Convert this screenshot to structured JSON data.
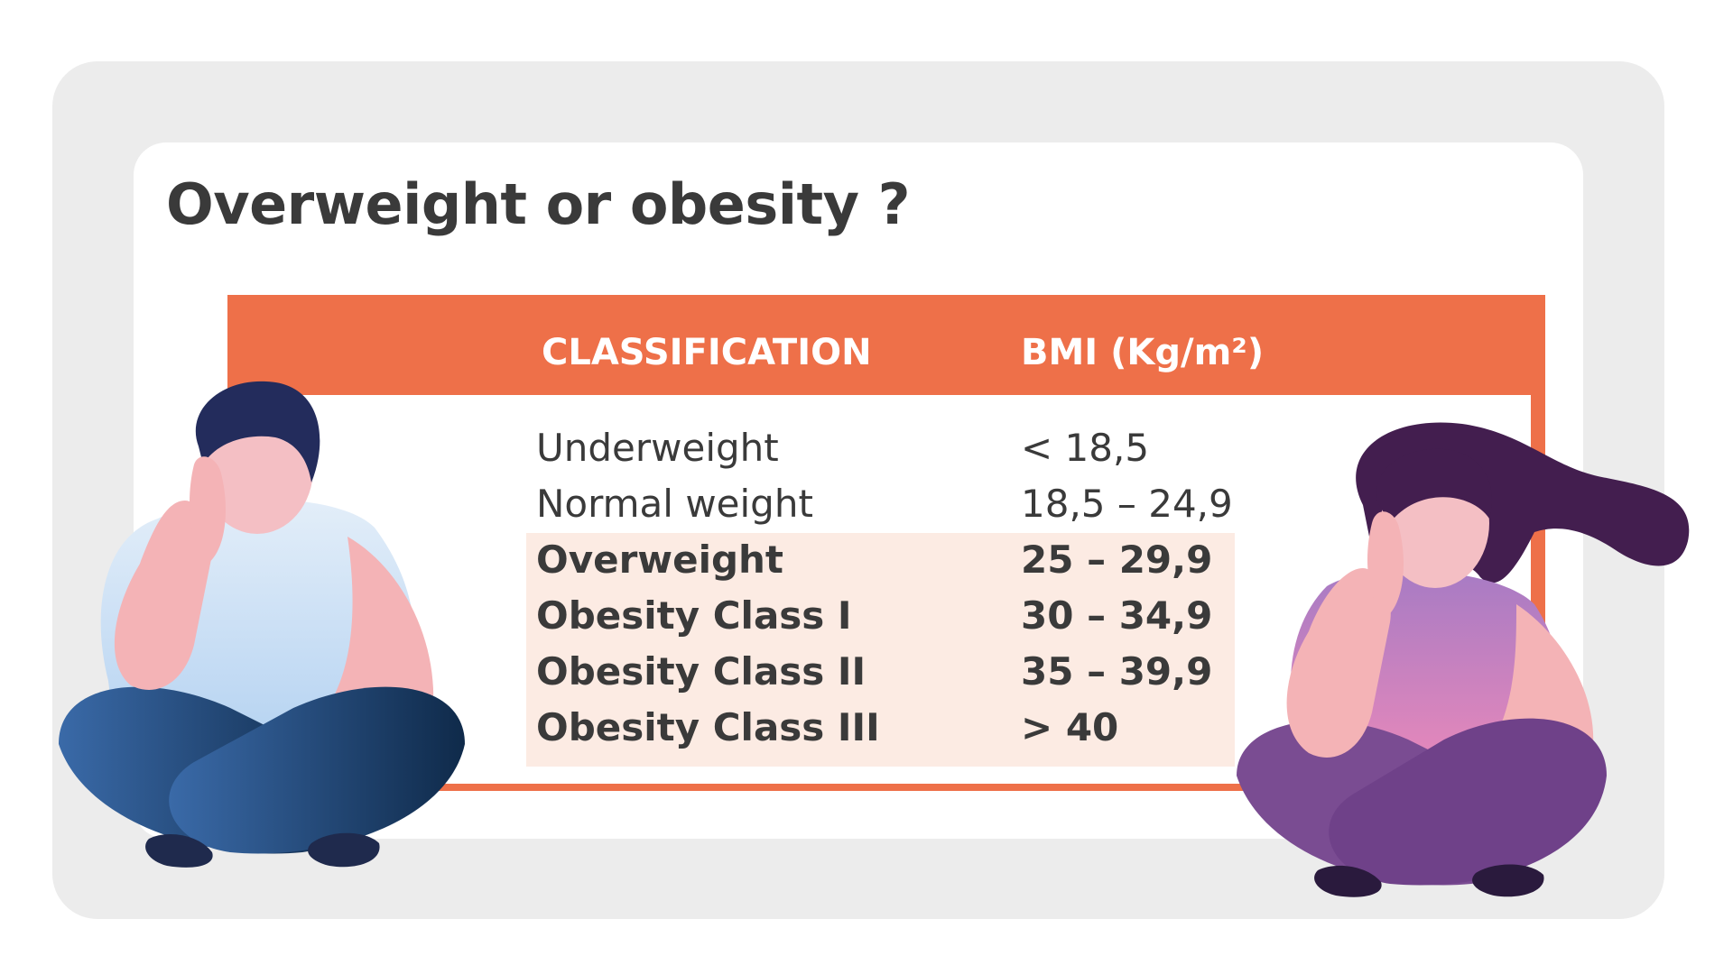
{
  "title": "Overweight or obesity ?",
  "table": {
    "headers": {
      "classification": "CLASSIFICATION",
      "bmi": "BMI (Kg/m²)"
    },
    "rows": [
      {
        "classification": "Underweight",
        "bmi": "< 18,5",
        "highlighted": false
      },
      {
        "classification": "Normal weight",
        "bmi": "18,5 – 24,9",
        "highlighted": false
      },
      {
        "classification": "Overweight",
        "bmi": "25 – 29,9",
        "highlighted": true
      },
      {
        "classification": "Obesity Class I",
        "bmi": "30 – 34,9",
        "highlighted": true
      },
      {
        "classification": "Obesity Class II",
        "bmi": "35 – 39,9",
        "highlighted": true
      },
      {
        "classification": "Obesity Class III",
        "bmi": "> 40",
        "highlighted": true
      }
    ]
  },
  "colors": {
    "accent": "#ee7049",
    "highlight_bg": "#fcebe3",
    "text": "#3a3a3a",
    "outer_bg": "#ececec"
  },
  "illustrations": {
    "left": "man-sitting-thinking-icon",
    "right": "woman-sitting-thinking-icon"
  }
}
